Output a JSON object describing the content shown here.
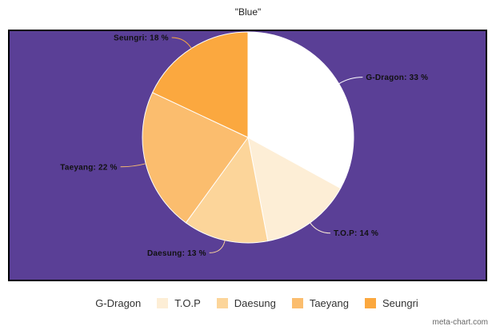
{
  "chart_data": {
    "type": "pie",
    "title": "\"Blue\"",
    "categories": [
      "G-Dragon",
      "T.O.P",
      "Daesung",
      "Taeyang",
      "Seungri"
    ],
    "values": [
      33,
      14,
      13,
      22,
      18
    ],
    "value_suffix": " %",
    "colors": [
      "#ffffff",
      "#fdeed6",
      "#fcd59a",
      "#fbbd6e",
      "#fba83f"
    ],
    "background": "#5a3f96",
    "legend_position": "bottom",
    "slice_labels": [
      "G-Dragon: 33 %",
      "T.O.P: 14 %",
      "Daesung: 13 %",
      "Taeyang: 22 %",
      "Seungri: 18 %"
    ]
  },
  "legend": {
    "items": [
      "G-Dragon",
      "T.O.P",
      "Daesung",
      "Taeyang",
      "Seungri"
    ]
  },
  "credit": "meta-chart.com"
}
